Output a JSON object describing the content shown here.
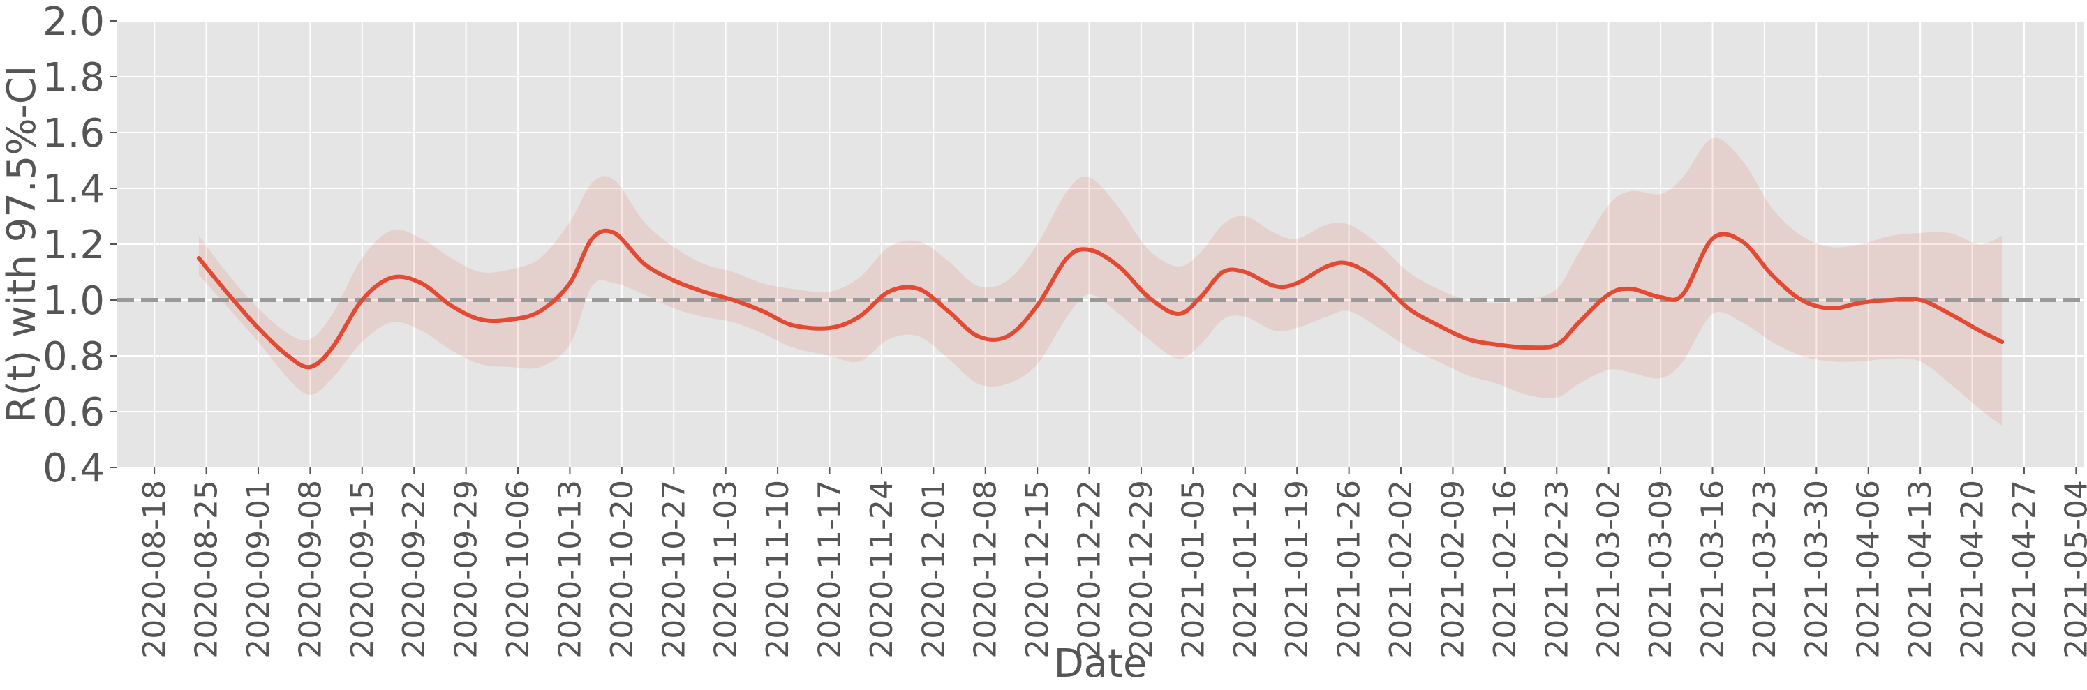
{
  "colors": {
    "plot_background": "#e5e5e5",
    "grid": "#ffffff",
    "line": "#e24a33",
    "band": "#e24a33",
    "reference_line": "#999999",
    "text": "#555555"
  },
  "chart_data": {
    "type": "line",
    "xlabel": "Date",
    "ylabel": "R(t) with 97.5%-CI",
    "xlim": [
      "2020-08-13",
      "2021-05-05"
    ],
    "ylim": [
      0.4,
      2.0
    ],
    "grid": true,
    "y_ticks": [
      "0.4",
      "0.6",
      "0.8",
      "1.0",
      "1.2",
      "1.4",
      "1.6",
      "1.8",
      "2.0"
    ],
    "x_ticks": [
      "2020-08-18",
      "2020-08-25",
      "2020-09-01",
      "2020-09-08",
      "2020-09-15",
      "2020-09-22",
      "2020-09-29",
      "2020-10-06",
      "2020-10-13",
      "2020-10-20",
      "2020-10-27",
      "2020-11-03",
      "2020-11-10",
      "2020-11-17",
      "2020-11-24",
      "2020-12-01",
      "2020-12-08",
      "2020-12-15",
      "2020-12-22",
      "2020-12-29",
      "2021-01-05",
      "2021-01-12",
      "2021-01-19",
      "2021-01-26",
      "2021-02-02",
      "2021-02-09",
      "2021-02-16",
      "2021-02-23",
      "2021-03-02",
      "2021-03-09",
      "2021-03-16",
      "2021-03-23",
      "2021-03-30",
      "2021-04-06",
      "2021-04-13",
      "2021-04-20",
      "2021-04-27",
      "2021-05-04"
    ],
    "reference_line": {
      "y": 1.0,
      "style": "dashed"
    },
    "series": [
      {
        "type": "line",
        "x": [
          "2020-08-24",
          "2020-08-28",
          "2020-09-01",
          "2020-09-05",
          "2020-09-08",
          "2020-09-11",
          "2020-09-15",
          "2020-09-19",
          "2020-09-23",
          "2020-09-27",
          "2020-10-01",
          "2020-10-05",
          "2020-10-09",
          "2020-10-13",
          "2020-10-16",
          "2020-10-19",
          "2020-10-23",
          "2020-10-27",
          "2020-10-31",
          "2020-11-04",
          "2020-11-08",
          "2020-11-12",
          "2020-11-17",
          "2020-11-21",
          "2020-11-25",
          "2020-11-29",
          "2020-12-03",
          "2020-12-07",
          "2020-12-11",
          "2020-12-15",
          "2020-12-19",
          "2020-12-22",
          "2020-12-26",
          "2020-12-30",
          "2021-01-03",
          "2021-01-06",
          "2021-01-09",
          "2021-01-12",
          "2021-01-16",
          "2021-01-19",
          "2021-01-23",
          "2021-01-26",
          "2021-01-30",
          "2021-02-03",
          "2021-02-07",
          "2021-02-11",
          "2021-02-15",
          "2021-02-19",
          "2021-02-23",
          "2021-02-26",
          "2021-03-02",
          "2021-03-05",
          "2021-03-09",
          "2021-03-12",
          "2021-03-16",
          "2021-03-20",
          "2021-03-24",
          "2021-03-28",
          "2021-04-01",
          "2021-04-05",
          "2021-04-09",
          "2021-04-13",
          "2021-04-17",
          "2021-04-21",
          "2021-04-24"
        ],
        "y": [
          1.15,
          1.02,
          0.9,
          0.8,
          0.76,
          0.83,
          1.0,
          1.08,
          1.06,
          0.98,
          0.93,
          0.93,
          0.96,
          1.06,
          1.22,
          1.24,
          1.13,
          1.07,
          1.03,
          1.0,
          0.96,
          0.91,
          0.9,
          0.94,
          1.03,
          1.04,
          0.96,
          0.87,
          0.87,
          0.98,
          1.15,
          1.18,
          1.12,
          1.01,
          0.95,
          1.01,
          1.1,
          1.1,
          1.05,
          1.06,
          1.12,
          1.13,
          1.07,
          0.97,
          0.91,
          0.86,
          0.84,
          0.83,
          0.84,
          0.92,
          1.02,
          1.04,
          1.01,
          1.02,
          1.22,
          1.21,
          1.09,
          1.0,
          0.97,
          0.99,
          1.0,
          1.0,
          0.95,
          0.89,
          0.85
        ]
      },
      {
        "type": "band",
        "x": [
          "2020-08-24",
          "2020-08-28",
          "2020-09-01",
          "2020-09-05",
          "2020-09-08",
          "2020-09-11",
          "2020-09-15",
          "2020-09-19",
          "2020-09-23",
          "2020-09-27",
          "2020-10-01",
          "2020-10-05",
          "2020-10-09",
          "2020-10-13",
          "2020-10-16",
          "2020-10-19",
          "2020-10-23",
          "2020-10-27",
          "2020-10-31",
          "2020-11-04",
          "2020-11-08",
          "2020-11-12",
          "2020-11-17",
          "2020-11-21",
          "2020-11-25",
          "2020-11-29",
          "2020-12-03",
          "2020-12-07",
          "2020-12-11",
          "2020-12-15",
          "2020-12-19",
          "2020-12-22",
          "2020-12-26",
          "2020-12-30",
          "2021-01-03",
          "2021-01-06",
          "2021-01-09",
          "2021-01-12",
          "2021-01-16",
          "2021-01-19",
          "2021-01-23",
          "2021-01-26",
          "2021-01-30",
          "2021-02-03",
          "2021-02-07",
          "2021-02-11",
          "2021-02-15",
          "2021-02-19",
          "2021-02-23",
          "2021-02-26",
          "2021-03-02",
          "2021-03-05",
          "2021-03-09",
          "2021-03-12",
          "2021-03-16",
          "2021-03-20",
          "2021-03-24",
          "2021-03-28",
          "2021-04-01",
          "2021-04-05",
          "2021-04-09",
          "2021-04-13",
          "2021-04-17",
          "2021-04-21",
          "2021-04-24"
        ],
        "lower": [
          1.09,
          0.97,
          0.85,
          0.72,
          0.66,
          0.72,
          0.85,
          0.92,
          0.89,
          0.82,
          0.77,
          0.76,
          0.76,
          0.84,
          1.05,
          1.06,
          1.02,
          0.97,
          0.94,
          0.92,
          0.88,
          0.83,
          0.8,
          0.78,
          0.86,
          0.87,
          0.79,
          0.7,
          0.7,
          0.77,
          0.94,
          1.02,
          0.95,
          0.86,
          0.79,
          0.84,
          0.93,
          0.94,
          0.89,
          0.9,
          0.94,
          0.96,
          0.9,
          0.83,
          0.78,
          0.73,
          0.7,
          0.66,
          0.65,
          0.7,
          0.75,
          0.74,
          0.72,
          0.78,
          0.95,
          0.92,
          0.85,
          0.8,
          0.78,
          0.78,
          0.79,
          0.78,
          0.7,
          0.61,
          0.55
        ],
        "upper": [
          1.23,
          1.09,
          0.97,
          0.88,
          0.86,
          0.95,
          1.15,
          1.25,
          1.22,
          1.15,
          1.1,
          1.11,
          1.15,
          1.28,
          1.42,
          1.43,
          1.28,
          1.19,
          1.13,
          1.1,
          1.06,
          1.04,
          1.03,
          1.08,
          1.19,
          1.21,
          1.14,
          1.05,
          1.07,
          1.2,
          1.39,
          1.44,
          1.33,
          1.18,
          1.12,
          1.17,
          1.27,
          1.3,
          1.24,
          1.22,
          1.27,
          1.27,
          1.2,
          1.1,
          1.04,
          1.0,
          0.99,
          1.0,
          1.04,
          1.17,
          1.34,
          1.39,
          1.38,
          1.44,
          1.58,
          1.5,
          1.33,
          1.23,
          1.19,
          1.2,
          1.23,
          1.24,
          1.24,
          1.2,
          1.23
        ]
      }
    ]
  }
}
